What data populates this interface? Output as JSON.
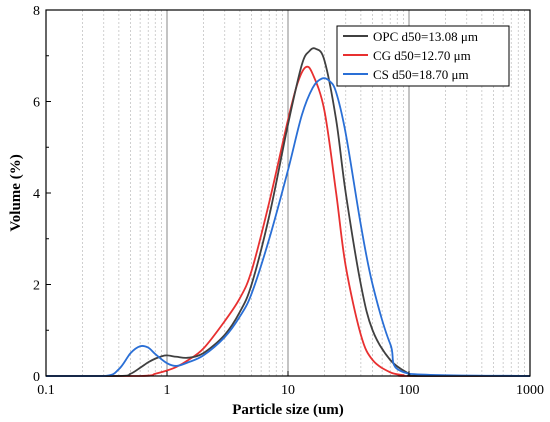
{
  "chart_data": {
    "type": "line",
    "xlabel": "Particle size (um)",
    "ylabel": "Volume (%)",
    "x_scale": "log",
    "xlim": [
      0.1,
      1000
    ],
    "ylim": [
      0,
      8
    ],
    "x_ticks": [
      "0.1",
      "1",
      "10",
      "100",
      "1000"
    ],
    "y_ticks": [
      "0",
      "2",
      "4",
      "6",
      "8"
    ],
    "grid": "vertical log gridlines",
    "legend_position": "top-right",
    "series": [
      {
        "name": "OPC d50=13.08 μm",
        "color": "#404040",
        "x": [
          0.1,
          0.4,
          0.5,
          0.6,
          0.7,
          0.8,
          0.9,
          1.0,
          1.2,
          1.5,
          2,
          3,
          4,
          5,
          7,
          10,
          13,
          15,
          17,
          20,
          25,
          30,
          40,
          50,
          70,
          100,
          120,
          1000
        ],
        "y": [
          0,
          0,
          0.05,
          0.18,
          0.3,
          0.38,
          0.43,
          0.45,
          0.42,
          0.4,
          0.5,
          0.9,
          1.4,
          2.0,
          3.5,
          5.5,
          6.8,
          7.1,
          7.15,
          6.9,
          5.6,
          4.0,
          2.0,
          1.0,
          0.35,
          0.05,
          0,
          0
        ]
      },
      {
        "name": "CG d50=12.70 μm",
        "color": "#e83030",
        "x": [
          0.1,
          0.6,
          0.8,
          1.0,
          1.2,
          1.5,
          2,
          3,
          4,
          5,
          7,
          10,
          12,
          14,
          16,
          20,
          25,
          30,
          40,
          50,
          70,
          90,
          100,
          1000
        ],
        "y": [
          0,
          0,
          0.05,
          0.12,
          0.2,
          0.35,
          0.6,
          1.2,
          1.7,
          2.3,
          3.8,
          5.6,
          6.4,
          6.75,
          6.6,
          5.8,
          4.0,
          2.4,
          0.9,
          0.35,
          0.08,
          0.02,
          0,
          0
        ]
      },
      {
        "name": "CS d50=18.70 μm",
        "color": "#2a6fd6",
        "x": [
          0.1,
          0.3,
          0.4,
          0.5,
          0.6,
          0.7,
          0.8,
          1.0,
          1.2,
          1.5,
          2,
          3,
          4,
          5,
          7,
          10,
          13,
          16,
          19,
          22,
          25,
          30,
          40,
          50,
          70,
          100,
          1000
        ],
        "y": [
          0,
          0,
          0.15,
          0.5,
          0.65,
          0.62,
          0.48,
          0.28,
          0.22,
          0.3,
          0.45,
          0.85,
          1.3,
          1.8,
          3.0,
          4.5,
          5.7,
          6.3,
          6.5,
          6.45,
          6.2,
          5.3,
          3.3,
          2.0,
          0.7,
          0.05,
          0
        ]
      }
    ]
  }
}
